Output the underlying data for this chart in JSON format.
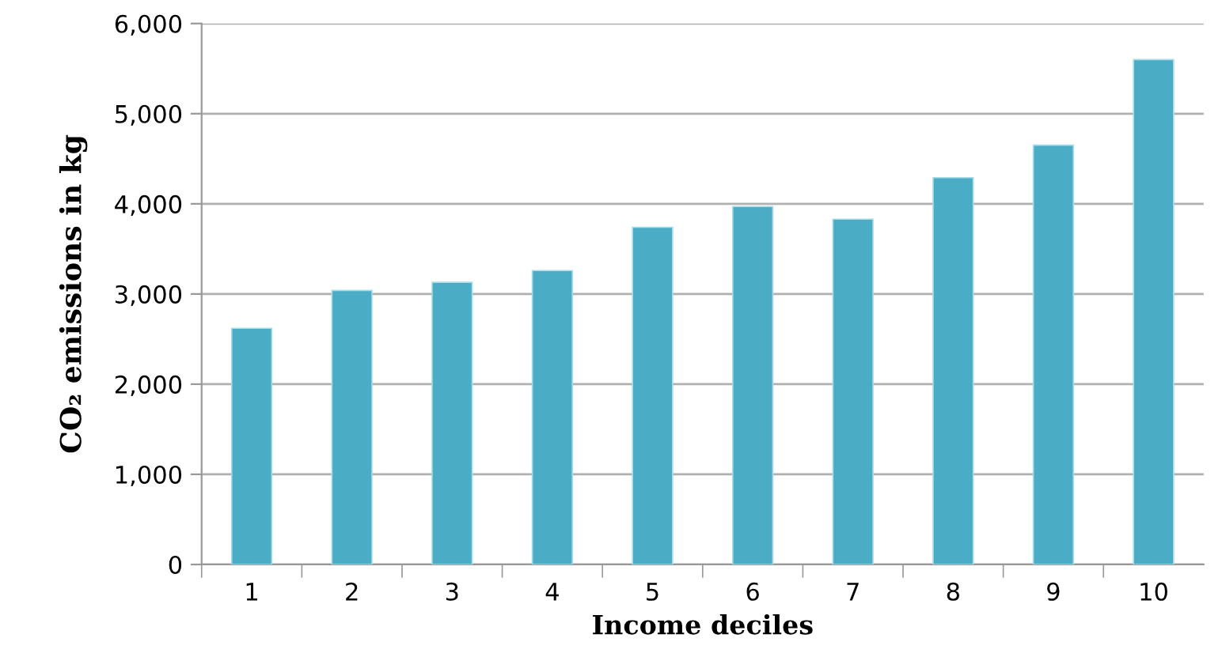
{
  "chart_data": {
    "type": "bar",
    "xlabel": "Income deciles",
    "ylabel": "CO₂ emissions in kg",
    "categories": [
      "1",
      "2",
      "3",
      "4",
      "5",
      "6",
      "7",
      "8",
      "9",
      "10"
    ],
    "values": [
      2620,
      3040,
      3130,
      3260,
      3740,
      3970,
      3830,
      4290,
      4650,
      5600
    ],
    "color": "#4bacc6",
    "ylim": [
      0,
      6000
    ],
    "yticks": [
      {
        "value": 0,
        "label": "0"
      },
      {
        "value": 1000,
        "label": "1,000"
      },
      {
        "value": 2000,
        "label": "2,000"
      },
      {
        "value": 3000,
        "label": "3,000"
      },
      {
        "value": 4000,
        "label": "4,000"
      },
      {
        "value": 5000,
        "label": "5,000"
      },
      {
        "value": 6000,
        "label": "6,000"
      }
    ],
    "grid": "y"
  }
}
